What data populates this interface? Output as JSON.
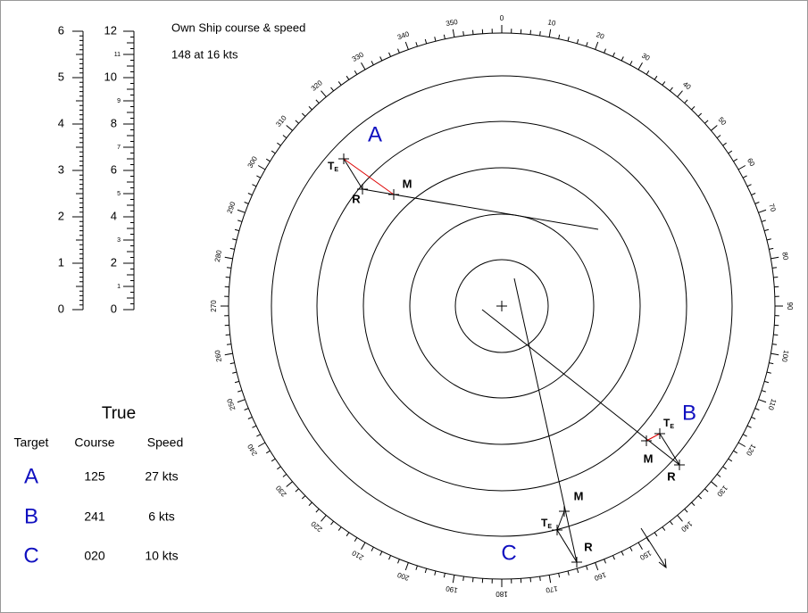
{
  "header": {
    "title": "Own Ship course & speed",
    "value": "148 at 16 kts"
  },
  "left_scale": {
    "labels": [
      0,
      1,
      2,
      3,
      4,
      5,
      6
    ]
  },
  "right_scale": {
    "major": [
      0,
      2,
      4,
      6,
      8,
      10,
      12
    ],
    "minor": [
      1,
      3,
      5,
      7,
      9,
      11
    ]
  },
  "bearings": [
    0,
    10,
    20,
    30,
    40,
    50,
    60,
    70,
    80,
    90,
    100,
    110,
    120,
    130,
    140,
    150,
    160,
    170,
    180,
    190,
    200,
    210,
    220,
    230,
    240,
    250,
    260,
    270,
    280,
    290,
    300,
    310,
    320,
    330,
    340,
    350
  ],
  "targets": [
    {
      "label": "A",
      "te": "T",
      "te_sub": "E",
      "m": "M",
      "r": "R"
    },
    {
      "label": "B",
      "te": "T",
      "te_sub": "E",
      "m": "M",
      "r": "R"
    },
    {
      "label": "C",
      "te": "T",
      "te_sub": "E",
      "m": "M",
      "r": "R"
    }
  ],
  "table": {
    "title": "True",
    "columns": [
      "Target",
      "Course",
      "Speed"
    ],
    "rows": [
      [
        "A",
        "125",
        "27 kts"
      ],
      [
        "B",
        "241",
        "6 kts"
      ],
      [
        "C",
        "020",
        "10 kts"
      ]
    ]
  }
}
